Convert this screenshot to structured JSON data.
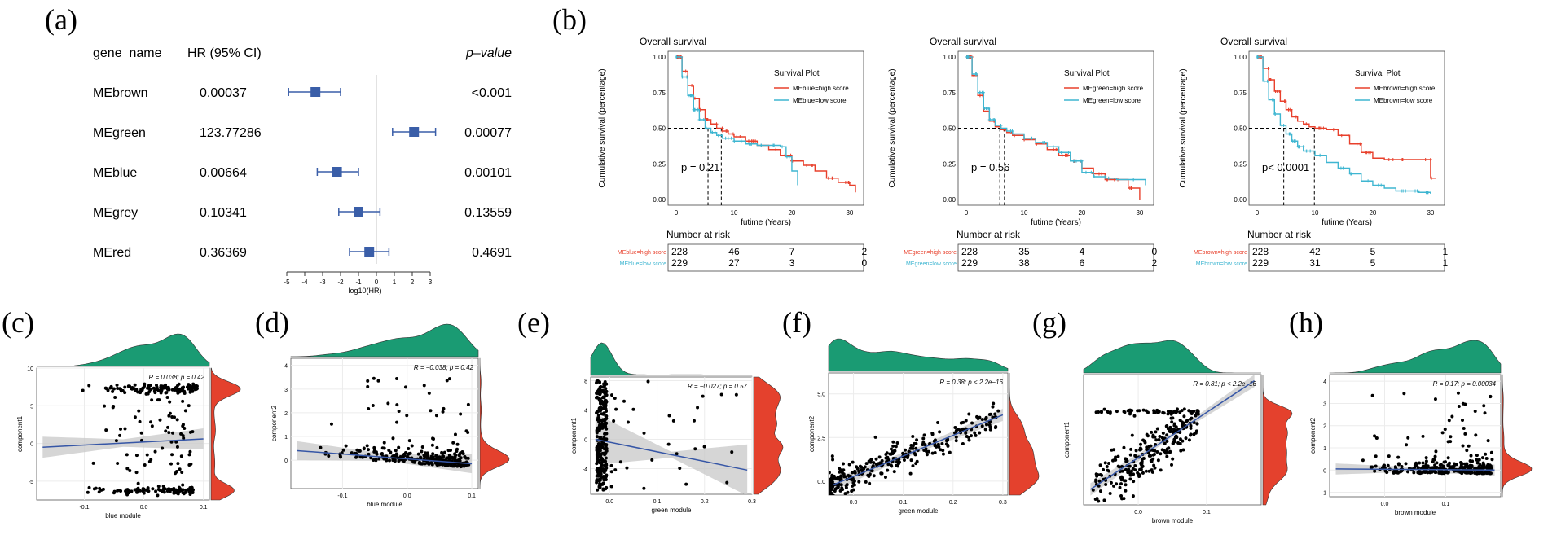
{
  "panel_labels": {
    "a": "(a)",
    "b": "(b)",
    "c": "(c)",
    "d": "(d)",
    "e": "(e)",
    "f": "(f)",
    "g": "(g)",
    "h": "(h)"
  },
  "colors": {
    "high": "#e8402c",
    "low": "#3fb6d1",
    "forest": "#3a5ea8",
    "green": "#1a9b73",
    "red": "#e4412d",
    "line": "#3656a6",
    "band": "#c8c8c8"
  },
  "forest": {
    "headers": {
      "name": "gene_name",
      "hr": "HR (95% CI)",
      "p": "p–value"
    },
    "rows": [
      {
        "name": "MEbrown",
        "hr": "0.00037",
        "p": "<0.001",
        "est": -3.4,
        "lo": -4.9,
        "hi": -2.0
      },
      {
        "name": "MEgreen",
        "hr": "123.77286",
        "p": "0.00077",
        "est": 2.1,
        "lo": 0.9,
        "hi": 3.3
      },
      {
        "name": "MEblue",
        "hr": "0.00664",
        "p": "0.00101",
        "est": -2.2,
        "lo": -3.3,
        "hi": -1.0
      },
      {
        "name": "MEgrey",
        "hr": "0.10341",
        "p": "0.13559",
        "est": -1.0,
        "lo": -2.1,
        "hi": 0.2
      },
      {
        "name": "MEred",
        "hr": "0.36369",
        "p": "0.4691",
        "est": -0.4,
        "lo": -1.5,
        "hi": 0.7
      }
    ],
    "ticks": [
      "-5",
      "-4",
      "-3",
      "-2",
      "-1",
      "0",
      "1",
      "2",
      "3"
    ],
    "xlabel": "log10(HR)"
  },
  "chart_data": [
    {
      "id": "b1",
      "type": "line",
      "title": "Overall survival",
      "ylabel": "Cumulative survival (percentage)",
      "xlabel": "futime (Years)",
      "legend_title": "Survival Plot",
      "xlim": [
        0,
        31
      ],
      "ylim": [
        0,
        1
      ],
      "xticks": [
        "0",
        "10",
        "20",
        "30"
      ],
      "yticks": [
        "0.00",
        "0.25",
        "0.50",
        "0.75",
        "1.00"
      ],
      "pval": "p = 0.21",
      "median_x": [
        5.5,
        7.8
      ],
      "series": [
        {
          "name": "MEblue=high score",
          "x": [
            0,
            1,
            2,
            3,
            4,
            5,
            6,
            7,
            8,
            9,
            10,
            12,
            14,
            16,
            18,
            20,
            22,
            24,
            26,
            28,
            30,
            31
          ],
          "y": [
            1,
            0.9,
            0.8,
            0.71,
            0.63,
            0.56,
            0.53,
            0.5,
            0.48,
            0.46,
            0.44,
            0.41,
            0.38,
            0.35,
            0.31,
            0.27,
            0.24,
            0.2,
            0.15,
            0.12,
            0.1,
            0.05
          ]
        },
        {
          "name": "MEblue=low score",
          "x": [
            0,
            1,
            2,
            3,
            4,
            5,
            6,
            7,
            8,
            10,
            12,
            14,
            16,
            18,
            19,
            20,
            21
          ],
          "y": [
            1,
            0.86,
            0.73,
            0.63,
            0.56,
            0.5,
            0.47,
            0.45,
            0.43,
            0.41,
            0.39,
            0.38,
            0.38,
            0.37,
            0.3,
            0.2,
            0.1
          ]
        }
      ],
      "risk": {
        "title": "Number at risk",
        "labels": [
          "MEblue=high score",
          "MEblue=low score"
        ],
        "rows": [
          [
            "228",
            "46",
            "7",
            "2"
          ],
          [
            "229",
            "27",
            "3",
            "0"
          ]
        ]
      }
    },
    {
      "id": "b2",
      "type": "line",
      "title": "Overall survival",
      "ylabel": "Cumulative survival (percentage)",
      "xlabel": "futime (Years)",
      "legend_title": "Survival Plot",
      "xlim": [
        0,
        31
      ],
      "ylim": [
        0,
        1
      ],
      "xticks": [
        "0",
        "10",
        "20",
        "30"
      ],
      "yticks": [
        "0.00",
        "0.25",
        "0.50",
        "0.75",
        "1.00"
      ],
      "pval": "p = 0.56",
      "median_x": [
        5.8,
        6.6
      ],
      "series": [
        {
          "name": "MEgreen=high score",
          "x": [
            0,
            1,
            2,
            3,
            4,
            5,
            6,
            7,
            8,
            10,
            12,
            14,
            16,
            18,
            20,
            22,
            24,
            26,
            28,
            30
          ],
          "y": [
            1,
            0.87,
            0.73,
            0.62,
            0.55,
            0.51,
            0.49,
            0.47,
            0.45,
            0.42,
            0.39,
            0.35,
            0.31,
            0.27,
            0.22,
            0.18,
            0.14,
            0.14,
            0.08,
            0
          ]
        },
        {
          "name": "MEgreen=low score",
          "x": [
            0,
            1,
            2,
            3,
            4,
            5,
            6,
            7,
            8,
            10,
            12,
            14,
            16,
            18,
            20,
            22,
            24,
            26,
            28,
            31
          ],
          "y": [
            1,
            0.88,
            0.75,
            0.64,
            0.56,
            0.52,
            0.5,
            0.48,
            0.46,
            0.43,
            0.4,
            0.37,
            0.33,
            0.27,
            0.19,
            0.16,
            0.15,
            0.14,
            0.14,
            0.1
          ]
        }
      ],
      "risk": {
        "title": "Number at risk",
        "labels": [
          "MEgreen=high score",
          "MEgreen=low score"
        ],
        "rows": [
          [
            "228",
            "35",
            "4",
            "0"
          ],
          [
            "229",
            "38",
            "6",
            "2"
          ]
        ]
      }
    },
    {
      "id": "b3",
      "type": "line",
      "title": "Overall survival",
      "ylabel": "Cumulative survival (percentage)",
      "xlabel": "futime (Years)",
      "legend_title": "Survival Plot",
      "xlim": [
        0,
        31
      ],
      "ylim": [
        0,
        1
      ],
      "xticks": [
        "0",
        "10",
        "20",
        "30"
      ],
      "yticks": [
        "0.00",
        "0.25",
        "0.50",
        "0.75",
        "1.00"
      ],
      "pval": "p< 0.0001",
      "median_x": [
        4.6,
        9.9
      ],
      "series": [
        {
          "name": "MEbrown=high score",
          "x": [
            0,
            1,
            2,
            3,
            4,
            5,
            6,
            7,
            8,
            9,
            10,
            12,
            14,
            16,
            18,
            20,
            22,
            24,
            26,
            28,
            30,
            31
          ],
          "y": [
            1,
            0.92,
            0.84,
            0.76,
            0.69,
            0.63,
            0.58,
            0.55,
            0.53,
            0.51,
            0.5,
            0.49,
            0.45,
            0.39,
            0.33,
            0.29,
            0.28,
            0.28,
            0.28,
            0.28,
            0.15,
            0.15
          ]
        },
        {
          "name": "MEbrown=low score",
          "x": [
            0,
            1,
            2,
            3,
            4,
            5,
            6,
            7,
            8,
            10,
            12,
            14,
            16,
            18,
            20,
            22,
            24,
            26,
            28,
            30
          ],
          "y": [
            1,
            0.83,
            0.7,
            0.6,
            0.52,
            0.46,
            0.41,
            0.37,
            0.34,
            0.31,
            0.26,
            0.22,
            0.18,
            0.13,
            0.1,
            0.08,
            0.06,
            0.06,
            0.05,
            0.04
          ]
        }
      ],
      "risk": {
        "title": "Number at risk",
        "labels": [
          "MEbrown=high score",
          "MEbrown=low score"
        ],
        "rows": [
          [
            "228",
            "42",
            "5",
            "1"
          ],
          [
            "229",
            "31",
            "5",
            "1"
          ]
        ]
      }
    },
    {
      "id": "c",
      "type": "scatter",
      "pattern": "band",
      "xlabel": "blue module",
      "ylabel": "component1",
      "xlim": [
        -0.18,
        0.11
      ],
      "ylim": [
        -7.5,
        10
      ],
      "xticks": [
        -0.1,
        0,
        0.1
      ],
      "xtick_labels": [
        "-0.1",
        "0.0",
        "0.1"
      ],
      "yticks": [
        -5,
        0,
        5,
        10
      ],
      "ytick_labels": [
        "-5",
        "0",
        "5",
        "10"
      ],
      "annotation": "R = 0.038; p = 0.42",
      "fit": [
        [
          -0.17,
          -0.5
        ],
        [
          0.1,
          0.6
        ]
      ],
      "band": [
        0.5,
        1.4
      ],
      "n": 300
    },
    {
      "id": "d",
      "type": "scatter",
      "pattern": "flat",
      "xlabel": "blue module",
      "ylabel": "component2",
      "xlim": [
        -0.18,
        0.11
      ],
      "ylim": [
        -1.2,
        4.3
      ],
      "xticks": [
        -0.1,
        0,
        0.1
      ],
      "xtick_labels": [
        "-0.1",
        "0.0",
        "0.1"
      ],
      "yticks": [
        0,
        1,
        2,
        3,
        4
      ],
      "ytick_labels": [
        "0",
        "1",
        "2",
        "3",
        "4"
      ],
      "annotation": "R = −0.038; p = 0.42",
      "fit": [
        [
          -0.17,
          0.4
        ],
        [
          0.1,
          -0.15
        ]
      ],
      "band": [
        0.15,
        0.4
      ],
      "n": 300
    },
    {
      "id": "e",
      "type": "scatter",
      "pattern": "leftcluster",
      "xlabel": "green module",
      "ylabel": "component1",
      "xlim": [
        -0.04,
        0.3
      ],
      "ylim": [
        -7.5,
        8.5
      ],
      "xticks": [
        0,
        0.1,
        0.2,
        0.3
      ],
      "xtick_labels": [
        "0.0",
        "0.1",
        "0.2",
        "0.3"
      ],
      "yticks": [
        -4,
        0,
        4,
        8
      ],
      "ytick_labels": [
        "-4",
        "0",
        "4",
        "8"
      ],
      "annotation": "R = −0.027; p = 0.57",
      "fit": [
        [
          -0.03,
          0
        ],
        [
          0.29,
          -4.2
        ]
      ],
      "band": [
        0.4,
        3.5
      ],
      "n": 300
    },
    {
      "id": "f",
      "type": "scatter",
      "pattern": "diag",
      "xlabel": "green module",
      "ylabel": "component2",
      "xlim": [
        -0.05,
        0.31
      ],
      "ylim": [
        -0.8,
        6.2
      ],
      "xticks": [
        0,
        0.1,
        0.2,
        0.3
      ],
      "xtick_labels": [
        "0.0",
        "0.1",
        "0.2",
        "0.3"
      ],
      "yticks": [
        0,
        2.5,
        5
      ],
      "ytick_labels": [
        "0.0",
        "2.5",
        "5.0"
      ],
      "annotation": "R = 0.38; p < 2.2e−16",
      "fit": [
        [
          -0.04,
          -0.2
        ],
        [
          0.3,
          3.8
        ]
      ],
      "band": [
        0.15,
        0.35
      ],
      "n": 300
    },
    {
      "id": "g",
      "type": "scatter",
      "pattern": "steep",
      "xlabel": "brown module",
      "ylabel": "component1",
      "xlim": [
        -0.08,
        0.18
      ],
      "ylim": [
        -8,
        13
      ],
      "xticks": [
        0,
        0.1
      ],
      "xtick_labels": [
        "0.0",
        "0.1"
      ],
      "yticks": [],
      "ytick_labels": [],
      "annotation": "R = 0.81; p < 2.2e−16",
      "fit": [
        [
          -0.07,
          -5.5
        ],
        [
          0.17,
          12
        ]
      ],
      "band": [
        0.3,
        1.0
      ],
      "n": 300
    },
    {
      "id": "h",
      "type": "scatter",
      "pattern": "flat",
      "xlabel": "brown module",
      "ylabel": "component2",
      "xlim": [
        -0.09,
        0.19
      ],
      "ylim": [
        -1.2,
        4.3
      ],
      "xticks": [
        0,
        0.1
      ],
      "xtick_labels": [
        "0.0",
        "0.1"
      ],
      "yticks": [
        -1,
        0,
        1,
        2,
        3,
        4
      ],
      "ytick_labels": [
        "-1",
        "0",
        "1",
        "2",
        "3",
        "4"
      ],
      "annotation": "R = 0.17; p = 0.00034",
      "fit": [
        [
          -0.08,
          0.05
        ],
        [
          0.18,
          0.0
        ]
      ],
      "band": [
        0.1,
        0.25
      ],
      "n": 300
    }
  ]
}
